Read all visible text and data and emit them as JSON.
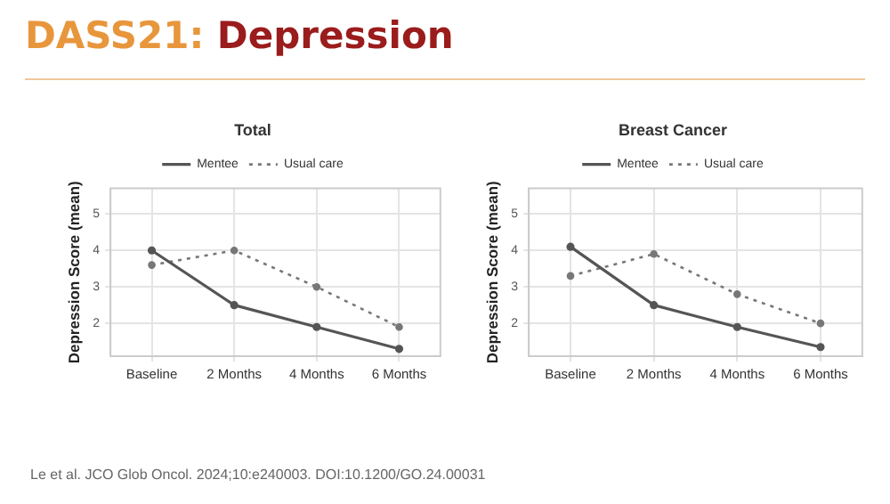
{
  "chart_data": [
    {
      "type": "other",
      "title": "DASS21: Depression",
      "annotations": [
        "Le et al. JCO Glob Oncol. 2024;10:e240003. DOI:10.1200/GO.24.00031"
      ]
    },
    {
      "type": "line",
      "title": "Total",
      "ylabel": "Depression Score (mean)",
      "categories": [
        "Baseline",
        "2 Months",
        "4 Months",
        "6 Months"
      ],
      "series": [
        {
          "name": "Mentee",
          "color": "#555555",
          "line_style": "solid",
          "values": [
            4.0,
            2.5,
            1.9,
            1.3
          ]
        },
        {
          "name": "Usual care",
          "color": "#777777",
          "line_style": "dotted",
          "values": [
            3.6,
            4.0,
            3.0,
            1.9
          ]
        }
      ],
      "ylim": [
        1.1,
        5.7
      ],
      "yticks": [
        2,
        3,
        4,
        5
      ],
      "grid": true,
      "legend": "top",
      "marker": "circle"
    },
    {
      "type": "line",
      "title": "Breast Cancer",
      "ylabel": "Depression Score (mean)",
      "categories": [
        "Baseline",
        "2 Months",
        "4 Months",
        "6 Months"
      ],
      "series": [
        {
          "name": "Mentee",
          "color": "#555555",
          "line_style": "solid",
          "values": [
            4.1,
            2.5,
            1.9,
            1.35
          ]
        },
        {
          "name": "Usual care",
          "color": "#777777",
          "line_style": "dotted",
          "values": [
            3.3,
            3.9,
            2.8,
            2.0
          ]
        }
      ],
      "ylim": [
        1.1,
        5.7
      ],
      "yticks": [
        2,
        3,
        4,
        5
      ],
      "grid": true,
      "legend": "top",
      "marker": "circle"
    }
  ]
}
